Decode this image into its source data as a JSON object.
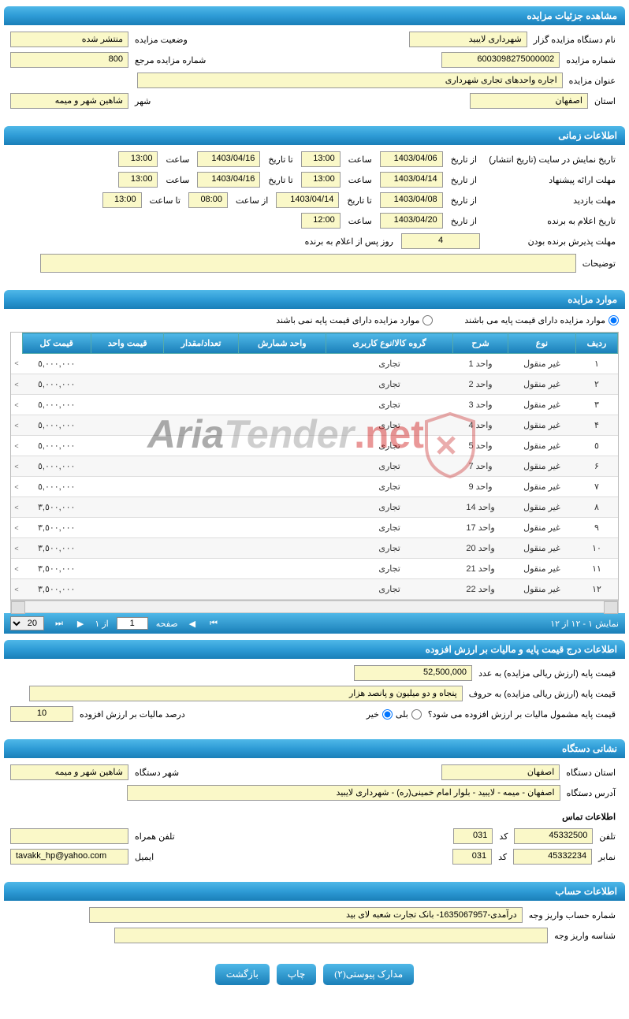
{
  "sections": {
    "details": "مشاهده جزئیات مزایده",
    "time": "اطلاعات زمانی",
    "items": "موارد مزایده",
    "price": "اطلاعات درج قیمت پایه و مالیات بر ارزش افزوده",
    "org": "نشانی دستگاه",
    "account": "اطلاعات حساب"
  },
  "details": {
    "org_label": "نام دستگاه مزایده گزار",
    "org_value": "شهرداری لایبید",
    "status_label": "وضعیت مزایده",
    "status_value": "منتشر شده",
    "num_label": "شماره مزایده",
    "num_value": "6003098275000002",
    "ref_label": "شماره مزایده مرجع",
    "ref_value": "800",
    "title_label": "عنوان مزایده",
    "title_value": "اجاره واحدهای تجاری شهرداری",
    "province_label": "استان",
    "province_value": "اصفهان",
    "city_label": "شهر",
    "city_value": "شاهین شهر و میمه"
  },
  "time": {
    "l_publish": "تاریخ نمایش در سایت (تاریخ انتشار)",
    "l_from": "از تاریخ",
    "l_to": "تا تاریخ",
    "l_hour": "ساعت",
    "l_tohour": "تا ساعت",
    "l_fromhour": "از ساعت",
    "l_offer": "مهلت ارائه پیشنهاد",
    "l_visit": "مهلت بازدید",
    "l_winner": "تاریخ اعلام به برنده",
    "l_accept": "مهلت پذیرش برنده بودن",
    "l_accept_suffix": "روز پس از اعلام به برنده",
    "l_notes": "توضیحات",
    "publish_from": "1403/04/06",
    "publish_from_h": "13:00",
    "publish_to": "1403/04/16",
    "publish_to_h": "13:00",
    "offer_from": "1403/04/14",
    "offer_from_h": "13:00",
    "offer_to": "1403/04/16",
    "offer_to_h": "13:00",
    "visit_from": "1403/04/08",
    "visit_to": "1403/04/14",
    "visit_from_h": "08:00",
    "visit_to_h": "13:00",
    "winner_from": "1403/04/20",
    "winner_h": "12:00",
    "accept_days": "4",
    "notes_value": ""
  },
  "items_opts": {
    "with_base": "موارد مزایده دارای قیمت پایه می باشند",
    "without_base": "موارد مزایده دارای قیمت پایه نمی باشند"
  },
  "table": {
    "cols": [
      "ردیف",
      "نوع",
      "شرح",
      "گروه کالا/نوع کاربری",
      "واحد شمارش",
      "تعداد/مقدار",
      "قیمت واحد",
      "قیمت کل"
    ],
    "rows": [
      [
        "١",
        "غیر منقول",
        "واحد 1",
        "تجاری",
        "",
        "",
        "",
        "٥,٠٠٠,٠٠٠"
      ],
      [
        "٢",
        "غیر منقول",
        "واحد 2",
        "تجاری",
        "",
        "",
        "",
        "٥,٠٠٠,٠٠٠"
      ],
      [
        "٣",
        "غیر منقول",
        "واحد 3",
        "تجاری",
        "",
        "",
        "",
        "٥,٠٠٠,٠٠٠"
      ],
      [
        "۴",
        "غیر منقول",
        "واحد 4",
        "تجاری",
        "",
        "",
        "",
        "٥,٠٠٠,٠٠٠"
      ],
      [
        "٥",
        "غیر منقول",
        "واحد 5",
        "تجاری",
        "",
        "",
        "",
        "٥,٠٠٠,٠٠٠"
      ],
      [
        "۶",
        "غیر منقول",
        "واحد 7",
        "تجاری",
        "",
        "",
        "",
        "٥,٠٠٠,٠٠٠"
      ],
      [
        "٧",
        "غیر منقول",
        "واحد 9",
        "تجاری",
        "",
        "",
        "",
        "٥,٠٠٠,٠٠٠"
      ],
      [
        "٨",
        "غیر منقول",
        "واحد 14",
        "تجاری",
        "",
        "",
        "",
        "٣,٥٠٠,٠٠٠"
      ],
      [
        "٩",
        "غیر منقول",
        "واحد 17",
        "تجاری",
        "",
        "",
        "",
        "٣,٥٠٠,٠٠٠"
      ],
      [
        "١٠",
        "غیر منقول",
        "واحد 20",
        "تجاری",
        "",
        "",
        "",
        "٣,٥٠٠,٠٠٠"
      ],
      [
        "١١",
        "غیر منقول",
        "واحد 21",
        "تجاری",
        "",
        "",
        "",
        "٣,٥٠٠,٠٠٠"
      ],
      [
        "١٢",
        "غیر منقول",
        "واحد 22",
        "تجاری",
        "",
        "",
        "",
        "٣,٥٠٠,٠٠٠"
      ]
    ]
  },
  "pager": {
    "summary": "نمایش ۱ - ۱۲ از ۱۲",
    "page_label": "صفحه",
    "page_val": "1",
    "of_label": "از ١",
    "size": "20"
  },
  "price": {
    "base_num_label": "قیمت پایه (ارزش ریالی مزایده) به عدد",
    "base_num_value": "52,500,000",
    "base_word_label": "قیمت پایه (ارزش ریالی مزایده) به حروف",
    "base_word_value": "پنجاه و دو میلیون و پانصد هزار",
    "vat_q": "قیمت پایه مشمول مالیات بر ارزش افزوده می شود؟",
    "yes": "بلی",
    "no": "خیر",
    "vat_pct_label": "درصد مالیات بر ارزش افزوده",
    "vat_pct_value": "10"
  },
  "org": {
    "province_label": "استان دستگاه",
    "province_value": "اصفهان",
    "city_label": "شهر دستگاه",
    "city_value": "شاهین شهر و میمه",
    "addr_label": "آدرس دستگاه",
    "addr_value": "اصفهان - میمه - لایبید - بلوار امام خمینی(ره) - شهرداری لایبید",
    "contact_header": "اطلاعات تماس",
    "phone_label": "تلفن",
    "phone_value": "45332500",
    "code_label": "کد",
    "code_value": "031",
    "mobile_label": "تلفن همراه",
    "mobile_value": "",
    "fax_label": "نمابر",
    "fax_value": "45332234",
    "email_label": "ایمیل",
    "email_value": "tavakk_hp@yahoo.com"
  },
  "account": {
    "acc_label": "شماره حساب واریز وجه",
    "acc_value": "درآمدی-1635067957- بانک تجارت شعبه لای بید",
    "id_label": "شناسه واریز وجه",
    "id_value": ""
  },
  "buttons": {
    "attach": "مدارک پیوستی(۲)",
    "print": "چاپ",
    "back": "بازگشت"
  },
  "watermark": {
    "text1": "Aria",
    "text2": "Tender",
    "text3": ".net"
  }
}
